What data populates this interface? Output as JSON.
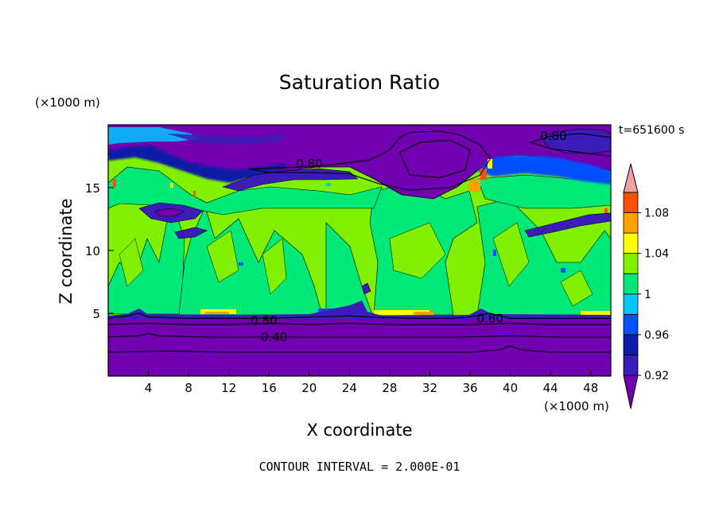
{
  "chart_data": {
    "type": "heatmap",
    "title": "Saturation Ratio",
    "xlabel": "X coordinate",
    "ylabel": "Z coordinate",
    "x_unit": "(×1000 m)",
    "y_unit": "(×1000 m)",
    "time_label": "t=651600 s",
    "footer": "CONTOUR INTERVAL = 2.000E-01",
    "xlim": [
      0,
      50
    ],
    "ylim": [
      0,
      20
    ],
    "x_ticks": [
      4,
      8,
      12,
      16,
      20,
      24,
      28,
      32,
      36,
      40,
      44,
      48
    ],
    "y_ticks": [
      5,
      10,
      15
    ],
    "grid": false,
    "colorbar": {
      "levels": [
        0.92,
        0.94,
        0.96,
        0.98,
        1.0,
        1.02,
        1.04,
        1.06,
        1.08,
        1.1
      ],
      "tick_labels": [
        "0.92",
        "0.96",
        "1",
        "1.04",
        "1.08"
      ],
      "tick_values": [
        0.92,
        0.96,
        1.0,
        1.04,
        1.08
      ],
      "colors": [
        "#7000b0",
        "#3c1cb8",
        "#0f1ca8",
        "#0050ff",
        "#00c8ff",
        "#00e878",
        "#80f000",
        "#ffff00",
        "#ffa000",
        "#ff5000",
        "#f00000",
        "#f0a0a0"
      ]
    },
    "contour_labels": [
      {
        "text": "0.80",
        "x": 15.5,
        "y": 4.4
      },
      {
        "text": "0.80",
        "x": 38.0,
        "y": 4.6
      },
      {
        "text": "0.40",
        "x": 16.5,
        "y": 3.1
      },
      {
        "text": "0.80",
        "x": 20.0,
        "y": 16.9
      },
      {
        "text": "0.80",
        "x": 44.3,
        "y": 19.1
      }
    ],
    "contours": [
      {
        "level": 0.8,
        "points": [
          [
            0,
            4.6
          ],
          [
            2,
            4.8
          ],
          [
            3,
            5.0
          ],
          [
            4,
            4.7
          ],
          [
            8,
            4.6
          ],
          [
            12,
            4.6
          ],
          [
            16,
            4.6
          ],
          [
            20,
            4.7
          ],
          [
            24,
            4.8
          ],
          [
            26,
            4.7
          ],
          [
            30,
            4.6
          ],
          [
            34,
            4.6
          ],
          [
            36,
            4.7
          ],
          [
            38,
            5.0
          ],
          [
            40,
            4.6
          ],
          [
            44,
            4.6
          ],
          [
            50,
            4.6
          ]
        ]
      },
      {
        "level": 0.6,
        "points": [
          [
            0,
            4.1
          ],
          [
            4,
            4.2
          ],
          [
            8,
            4.1
          ],
          [
            12,
            4.1
          ],
          [
            16,
            4.2
          ],
          [
            20,
            4.1
          ],
          [
            24,
            4.2
          ],
          [
            28,
            4.1
          ],
          [
            32,
            4.1
          ],
          [
            36,
            4.1
          ],
          [
            40,
            4.2
          ],
          [
            44,
            4.1
          ],
          [
            50,
            4.1
          ]
        ]
      },
      {
        "level": 0.4,
        "points": [
          [
            0,
            3.1
          ],
          [
            3,
            3.2
          ],
          [
            4,
            3.4
          ],
          [
            5,
            3.2
          ],
          [
            10,
            3.1
          ],
          [
            16,
            3.1
          ],
          [
            20,
            3.1
          ],
          [
            25,
            3.1
          ],
          [
            30,
            3.1
          ],
          [
            35,
            3.1
          ],
          [
            40,
            3.2
          ],
          [
            45,
            3.1
          ],
          [
            50,
            3.1
          ]
        ]
      },
      {
        "level": 0.2,
        "points": [
          [
            0,
            1.9
          ],
          [
            6,
            2.0
          ],
          [
            12,
            1.9
          ],
          [
            18,
            1.9
          ],
          [
            24,
            1.9
          ],
          [
            30,
            1.9
          ],
          [
            36,
            1.9
          ],
          [
            39,
            2.1
          ],
          [
            40,
            2.4
          ],
          [
            41,
            2.1
          ],
          [
            44,
            1.9
          ],
          [
            50,
            1.9
          ]
        ]
      },
      {
        "level": 0.8,
        "points": [
          [
            14,
            16.5
          ],
          [
            18,
            16.6
          ],
          [
            22,
            16.8
          ],
          [
            26,
            17.2
          ],
          [
            28,
            18.0
          ],
          [
            29,
            19.0
          ],
          [
            30,
            19.4
          ],
          [
            33,
            19.5
          ],
          [
            35,
            19.2
          ],
          [
            37,
            18.4
          ],
          [
            38,
            17.3
          ],
          [
            37,
            16.0
          ],
          [
            34,
            15.0
          ],
          [
            30,
            14.8
          ],
          [
            27,
            15.3
          ],
          [
            24,
            16.1
          ],
          [
            20,
            16.2
          ],
          [
            16,
            16.2
          ],
          [
            14,
            16.5
          ]
        ]
      },
      {
        "level": 0.6,
        "points": [
          [
            29,
            17.8
          ],
          [
            31,
            18.6
          ],
          [
            34,
            18.8
          ],
          [
            36,
            18.0
          ],
          [
            35.5,
            16.4
          ],
          [
            33,
            15.8
          ],
          [
            30,
            16.0
          ],
          [
            29,
            17.8
          ]
        ]
      },
      {
        "level": 0.8,
        "points": [
          [
            42,
            18.6
          ],
          [
            44,
            19.1
          ],
          [
            47,
            19.3
          ],
          [
            50,
            19.0
          ],
          [
            50,
            17.5
          ],
          [
            47,
            17.8
          ],
          [
            44,
            18.1
          ],
          [
            42,
            18.6
          ]
        ]
      }
    ]
  }
}
